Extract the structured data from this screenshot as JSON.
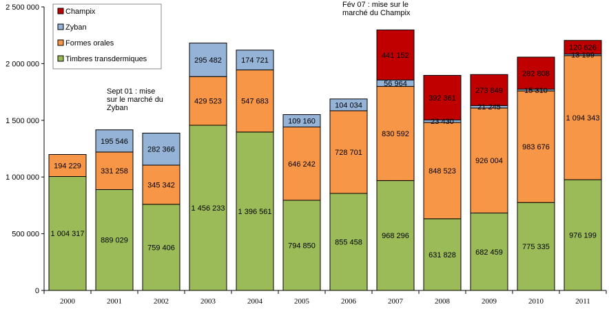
{
  "chart_data": {
    "type": "stacked-bar",
    "categories": [
      "2000",
      "2001",
      "2002",
      "2003",
      "2004",
      "2005",
      "2006",
      "2007",
      "2008",
      "2009",
      "2010",
      "2011"
    ],
    "series": [
      {
        "name": "Timbres transdermiques",
        "color": "#9BBB59",
        "values": [
          1004317,
          889029,
          759406,
          1456233,
          1396561,
          794850,
          855458,
          968296,
          631828,
          682459,
          775335,
          976199
        ],
        "labels": [
          "1 004 317",
          "889 029",
          "759 406",
          "1 456 233",
          "1 396 561",
          "794 850",
          "855 458",
          "968 296",
          "631 828",
          "682 459",
          "775 335",
          "976 199"
        ]
      },
      {
        "name": "Formes orales",
        "color": "#F79646",
        "values": [
          194229,
          331258,
          345342,
          429523,
          547683,
          646242,
          728701,
          830592,
          848523,
          926004,
          983676,
          1094343
        ],
        "labels": [
          "194 229",
          "331 258",
          "345 342",
          "429 523",
          "547 683",
          "646 242",
          "728 701",
          "830 592",
          "848 523",
          "926 004",
          "983 676",
          "1 094 343"
        ]
      },
      {
        "name": "Zyban",
        "color": "#95B3D7",
        "values": [
          0,
          195546,
          282366,
          295482,
          174721,
          109160,
          104034,
          56964,
          23430,
          21245,
          15310,
          13199
        ],
        "labels": [
          "",
          "195 546",
          "282 366",
          "295 482",
          "174 721",
          "109 160",
          "104 034",
          "56 964",
          "23 430",
          "21 245",
          "15 310",
          "13 199"
        ]
      },
      {
        "name": "Champix",
        "color": "#C00000",
        "values": [
          0,
          0,
          0,
          0,
          0,
          0,
          0,
          441152,
          392361,
          273849,
          282808,
          120626
        ],
        "labels": [
          "",
          "",
          "",
          "",
          "",
          "",
          "",
          "441 152",
          "392 361",
          "273 849",
          "282 808",
          "120 626"
        ]
      }
    ],
    "yticks": [
      0,
      500000,
      1000000,
      1500000,
      2000000,
      2500000
    ],
    "ytick_labels": [
      "0",
      "500 000",
      "1 000 000",
      "1 500 000",
      "2 000 000",
      "2 500 000"
    ],
    "ylim": [
      0,
      2500000
    ],
    "legend_order": [
      "Champix",
      "Zyban",
      "Formes orales",
      "Timbres transdermiques"
    ],
    "legend_position": "top-left",
    "annotations": [
      {
        "lines": [
          "Sept 01 : mise",
          "sur le marché du",
          "Zyban"
        ]
      },
      {
        "lines": [
          "Fév 07 : mise sur le",
          "marché du Champix"
        ]
      }
    ]
  }
}
